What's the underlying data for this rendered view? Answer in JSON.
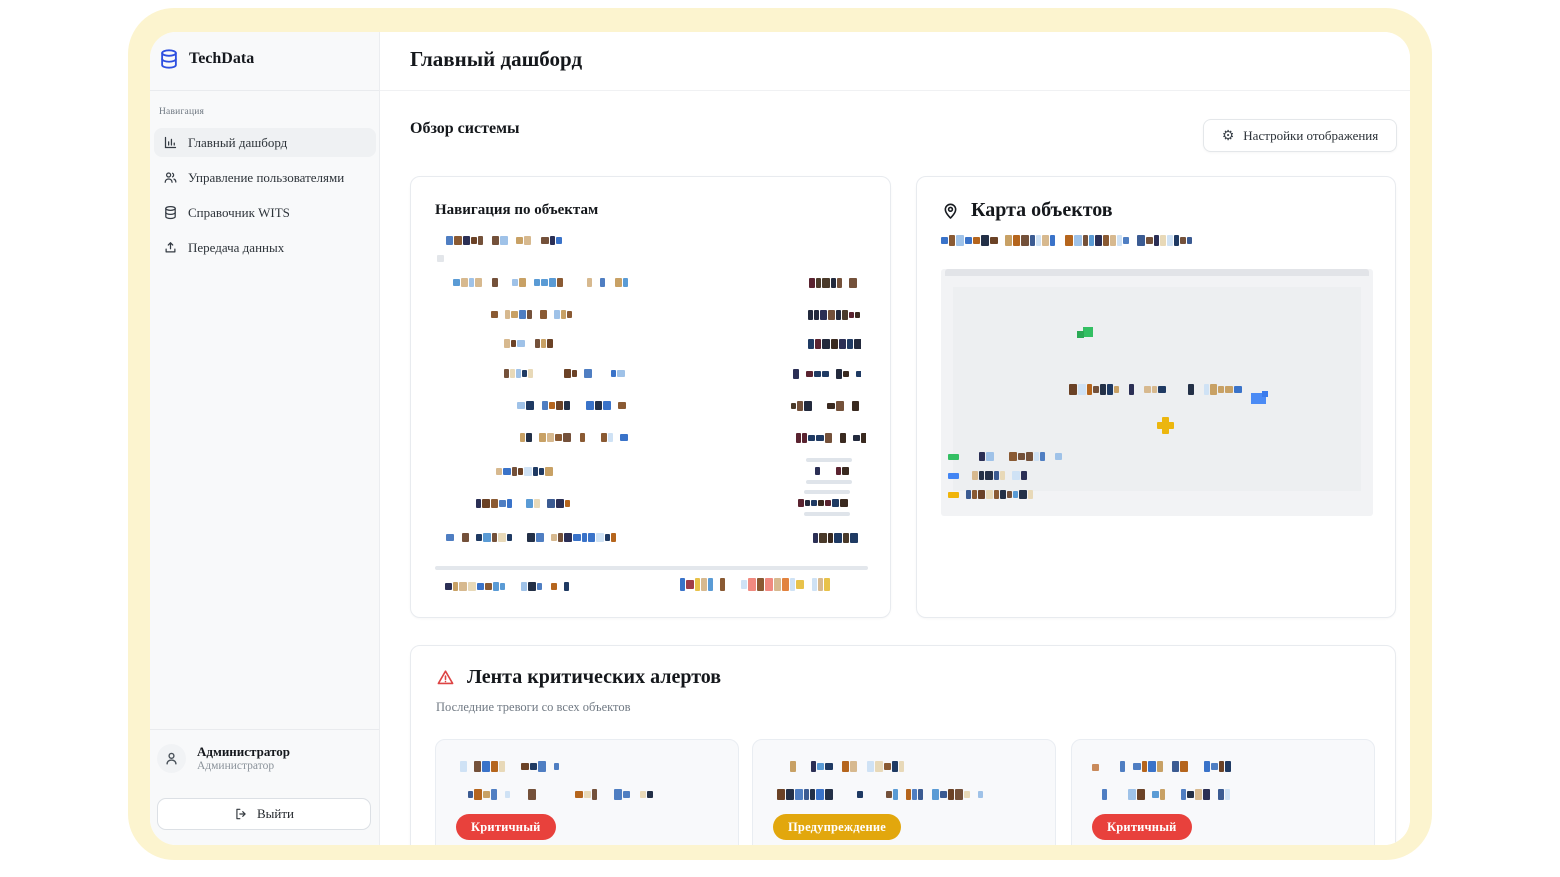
{
  "brand": {
    "name": "TechData"
  },
  "sidebar": {
    "section_label": "Навигация",
    "items": [
      {
        "label": "Главный дашборд",
        "icon": "bar-chart",
        "active": true
      },
      {
        "label": "Управление пользователями",
        "icon": "users",
        "active": false
      },
      {
        "label": "Справочник WITS",
        "icon": "database",
        "active": false
      },
      {
        "label": "Передача данных",
        "icon": "upload",
        "active": false
      }
    ],
    "user": {
      "name": "Администратор",
      "role": "Администратор"
    },
    "logout_label": "Выйти"
  },
  "header": {
    "title": "Главный дашборд"
  },
  "overview": {
    "heading": "Обзор системы",
    "settings_button_label": "Настройки отображения"
  },
  "nav_card": {
    "title": "Навигация по объектам"
  },
  "map_card": {
    "title": "Карта объектов",
    "legend": [
      {
        "color": "#33bf63"
      },
      {
        "color": "#4285f4"
      },
      {
        "color": "#f0b40a"
      }
    ]
  },
  "alerts_card": {
    "title": "Лента критических алертов",
    "subtitle": "Последние тревоги со всех объектов",
    "items": [
      {
        "severity_label": "Критичный",
        "severity": "critical"
      },
      {
        "severity_label": "Предупреждение",
        "severity": "warning"
      },
      {
        "severity_label": "Критичный",
        "severity": "critical"
      }
    ]
  },
  "colors": {
    "accent_blue": "#2d4fe0",
    "critical_red": "#e8413c",
    "warning_yellow": "#e2a70d",
    "frame_yellow": "#fcf4cf"
  }
}
